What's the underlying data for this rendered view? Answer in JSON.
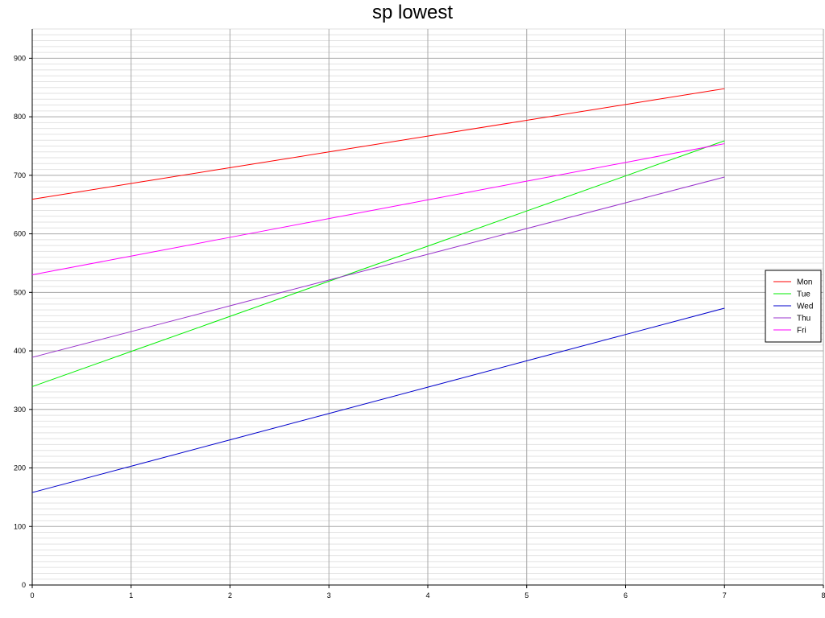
{
  "chart_data": {
    "type": "line",
    "title": "sp lowest",
    "xlabel": "",
    "ylabel": "",
    "xlim": [
      0,
      8
    ],
    "ylim": [
      0,
      950
    ],
    "x_ticks": [
      0,
      1,
      2,
      3,
      4,
      5,
      6,
      7,
      8
    ],
    "y_ticks": [
      0,
      100,
      200,
      300,
      400,
      500,
      600,
      700,
      800,
      900
    ],
    "grid": true,
    "legend_position": "right",
    "x": [
      0,
      1,
      2,
      3,
      4,
      5,
      6,
      7
    ],
    "series": [
      {
        "name": "Mon",
        "color": "#ff0000",
        "values": [
          659,
          686,
          713,
          740,
          767,
          794,
          821,
          848
        ]
      },
      {
        "name": "Tue",
        "color": "#00ee00",
        "values": [
          339,
          399,
          459,
          519,
          579,
          639,
          699,
          759
        ]
      },
      {
        "name": "Wed",
        "color": "#0000cc",
        "values": [
          158,
          203,
          248,
          293,
          338,
          383,
          428,
          473
        ]
      },
      {
        "name": "Thu",
        "color": "#9933cc",
        "values": [
          389,
          433,
          477,
          521,
          565,
          609,
          653,
          697
        ]
      },
      {
        "name": "Fri",
        "color": "#ff00ff",
        "values": [
          530,
          562,
          594,
          626,
          658,
          690,
          722,
          754
        ]
      }
    ]
  }
}
